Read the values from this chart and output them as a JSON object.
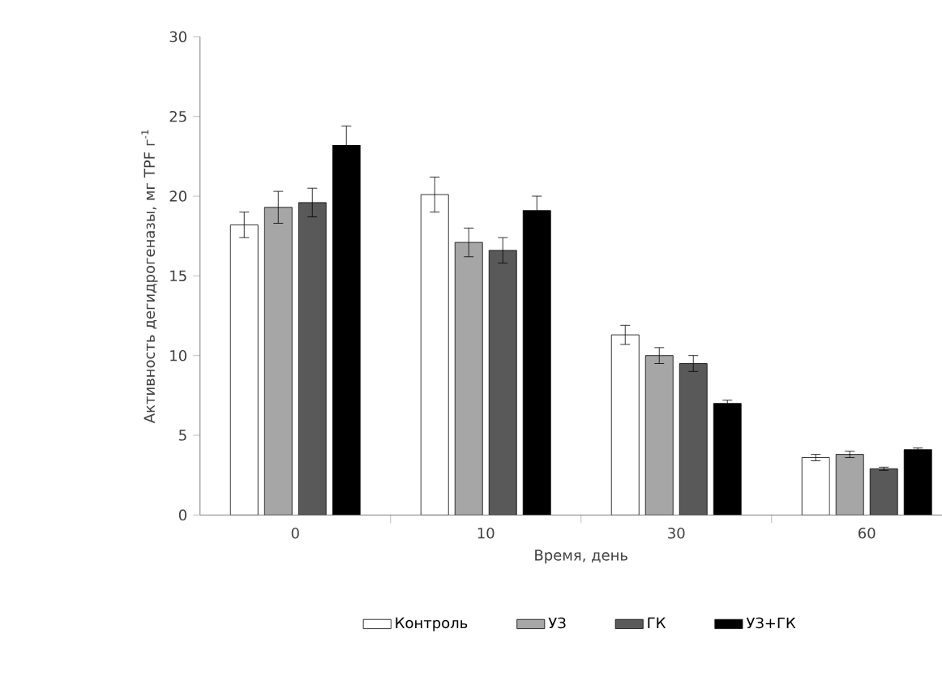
{
  "chart_data": {
    "type": "bar",
    "xlabel": "Время, день",
    "ylabel": "Активность дегидрогеназы, мг TPF г$^{-1}$",
    "categories": [
      "0",
      "10",
      "30",
      "60"
    ],
    "series": [
      {
        "name": "Контроль",
        "color": "#ffffff",
        "values": [
          18.2,
          20.1,
          11.3,
          3.6
        ],
        "errors": [
          0.8,
          1.1,
          0.6,
          0.2
        ]
      },
      {
        "name": "УЗ",
        "color": "#a6a6a6",
        "values": [
          19.3,
          17.1,
          10.0,
          3.8
        ],
        "errors": [
          1.0,
          0.9,
          0.5,
          0.2
        ]
      },
      {
        "name": "ГК",
        "color": "#595959",
        "values": [
          19.6,
          16.6,
          9.5,
          2.9
        ],
        "errors": [
          0.9,
          0.8,
          0.5,
          0.1
        ]
      },
      {
        "name": "УЗ+ГК",
        "color": "#000000",
        "values": [
          23.2,
          19.1,
          7.0,
          4.1
        ],
        "errors": [
          1.2,
          0.9,
          0.2,
          0.1
        ]
      }
    ],
    "ylim": [
      0,
      30
    ],
    "yticks": [
      0,
      5,
      10,
      15,
      20,
      25,
      30
    ],
    "grid": false,
    "legend": "bottom"
  }
}
